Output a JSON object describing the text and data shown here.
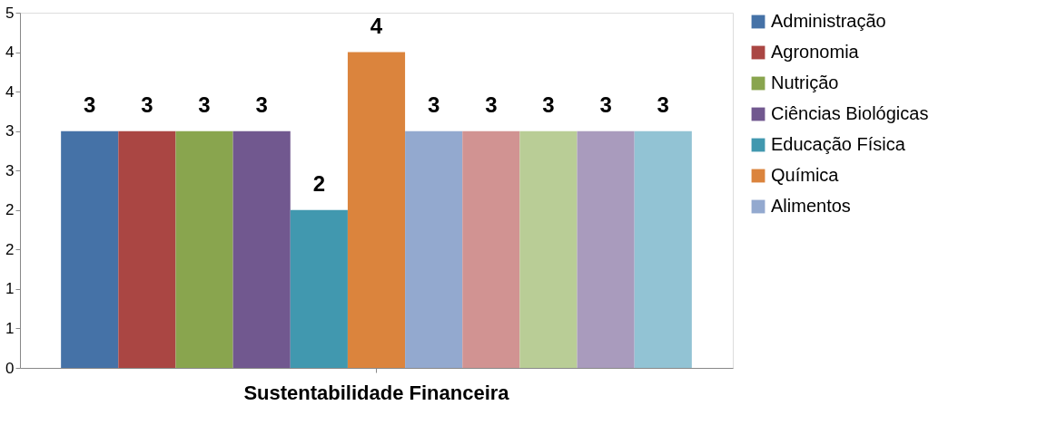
{
  "chart_data": {
    "type": "bar",
    "categories": [
      "Sustentabilidade Financeira"
    ],
    "series": [
      {
        "name": "Administração",
        "color": "#4572a7",
        "values": [
          3
        ]
      },
      {
        "name": "Agronomia",
        "color": "#aa4643",
        "values": [
          3
        ]
      },
      {
        "name": "Nutrição",
        "color": "#89a54e",
        "values": [
          3
        ]
      },
      {
        "name": "Ciências Biológicas",
        "color": "#71588f",
        "values": [
          3
        ]
      },
      {
        "name": "Educação Física",
        "color": "#4198af",
        "values": [
          2
        ]
      },
      {
        "name": "Química",
        "color": "#db843d",
        "values": [
          4
        ]
      },
      {
        "name": "Alimentos",
        "color": "#93a9cf",
        "values": [
          3
        ]
      },
      {
        "color": "#d19392",
        "values": [
          3
        ]
      },
      {
        "color": "#b9cd96",
        "values": [
          3
        ]
      },
      {
        "color": "#a99bbd",
        "values": [
          3
        ]
      },
      {
        "color": "#92c3d4",
        "values": [
          3
        ]
      }
    ],
    "ylim": [
      0,
      4.5
    ],
    "yticks": [
      0,
      {
        "value": 0.5,
        "label": "1"
      },
      1,
      {
        "value": 1.5,
        "label": "2"
      },
      2,
      {
        "value": 2.5,
        "label": "3"
      },
      3,
      {
        "value": 3.5,
        "label": "4"
      },
      4,
      {
        "value": 4.5,
        "label": "5"
      }
    ],
    "data_labels": true,
    "grid": false,
    "legend": "right"
  }
}
